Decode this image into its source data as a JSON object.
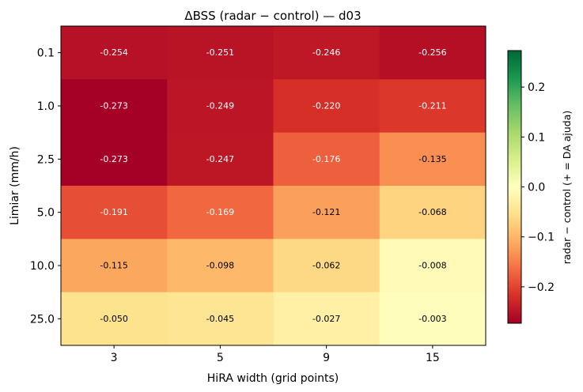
{
  "chart_data": {
    "type": "heatmap",
    "title": "ΔBSS  (radar − control)  —  d03",
    "xlabel": "HiRA width (grid points)",
    "ylabel": "Limiar (mm/h)",
    "x_categories": [
      "3",
      "5",
      "9",
      "15"
    ],
    "y_categories": [
      "0.1",
      "1.0",
      "2.5",
      "5.0",
      "10.0",
      "25.0"
    ],
    "values": [
      [
        -0.254,
        -0.251,
        -0.246,
        -0.256
      ],
      [
        -0.273,
        -0.249,
        -0.22,
        -0.211
      ],
      [
        -0.273,
        -0.247,
        -0.176,
        -0.135
      ],
      [
        -0.191,
        -0.169,
        -0.121,
        -0.068
      ],
      [
        -0.115,
        -0.098,
        -0.062,
        -0.008
      ],
      [
        -0.05,
        -0.045,
        -0.027,
        -0.003
      ]
    ],
    "cell_labels": [
      [
        "-0.254",
        "-0.251",
        "-0.246",
        "-0.256"
      ],
      [
        "-0.273",
        "-0.249",
        "-0.220",
        "-0.211"
      ],
      [
        "-0.273",
        "-0.247",
        "-0.176",
        "-0.135"
      ],
      [
        "-0.191",
        "-0.169",
        "-0.121",
        "-0.068"
      ],
      [
        "-0.115",
        "-0.098",
        "-0.062",
        "-0.008"
      ],
      [
        "-0.050",
        "-0.045",
        "-0.027",
        "-0.003"
      ]
    ],
    "colormap": "RdYlGn",
    "vmin": -0.273,
    "vmax": 0.273,
    "colorbar": {
      "label": "radar − control  (+ = DA ajuda)",
      "ticks": [
        -0.2,
        -0.1,
        0.0,
        0.1,
        0.2
      ],
      "tick_labels": [
        "−0.2",
        "−0.1",
        "0.0",
        "0.1",
        "0.2"
      ]
    },
    "grid": false
  }
}
